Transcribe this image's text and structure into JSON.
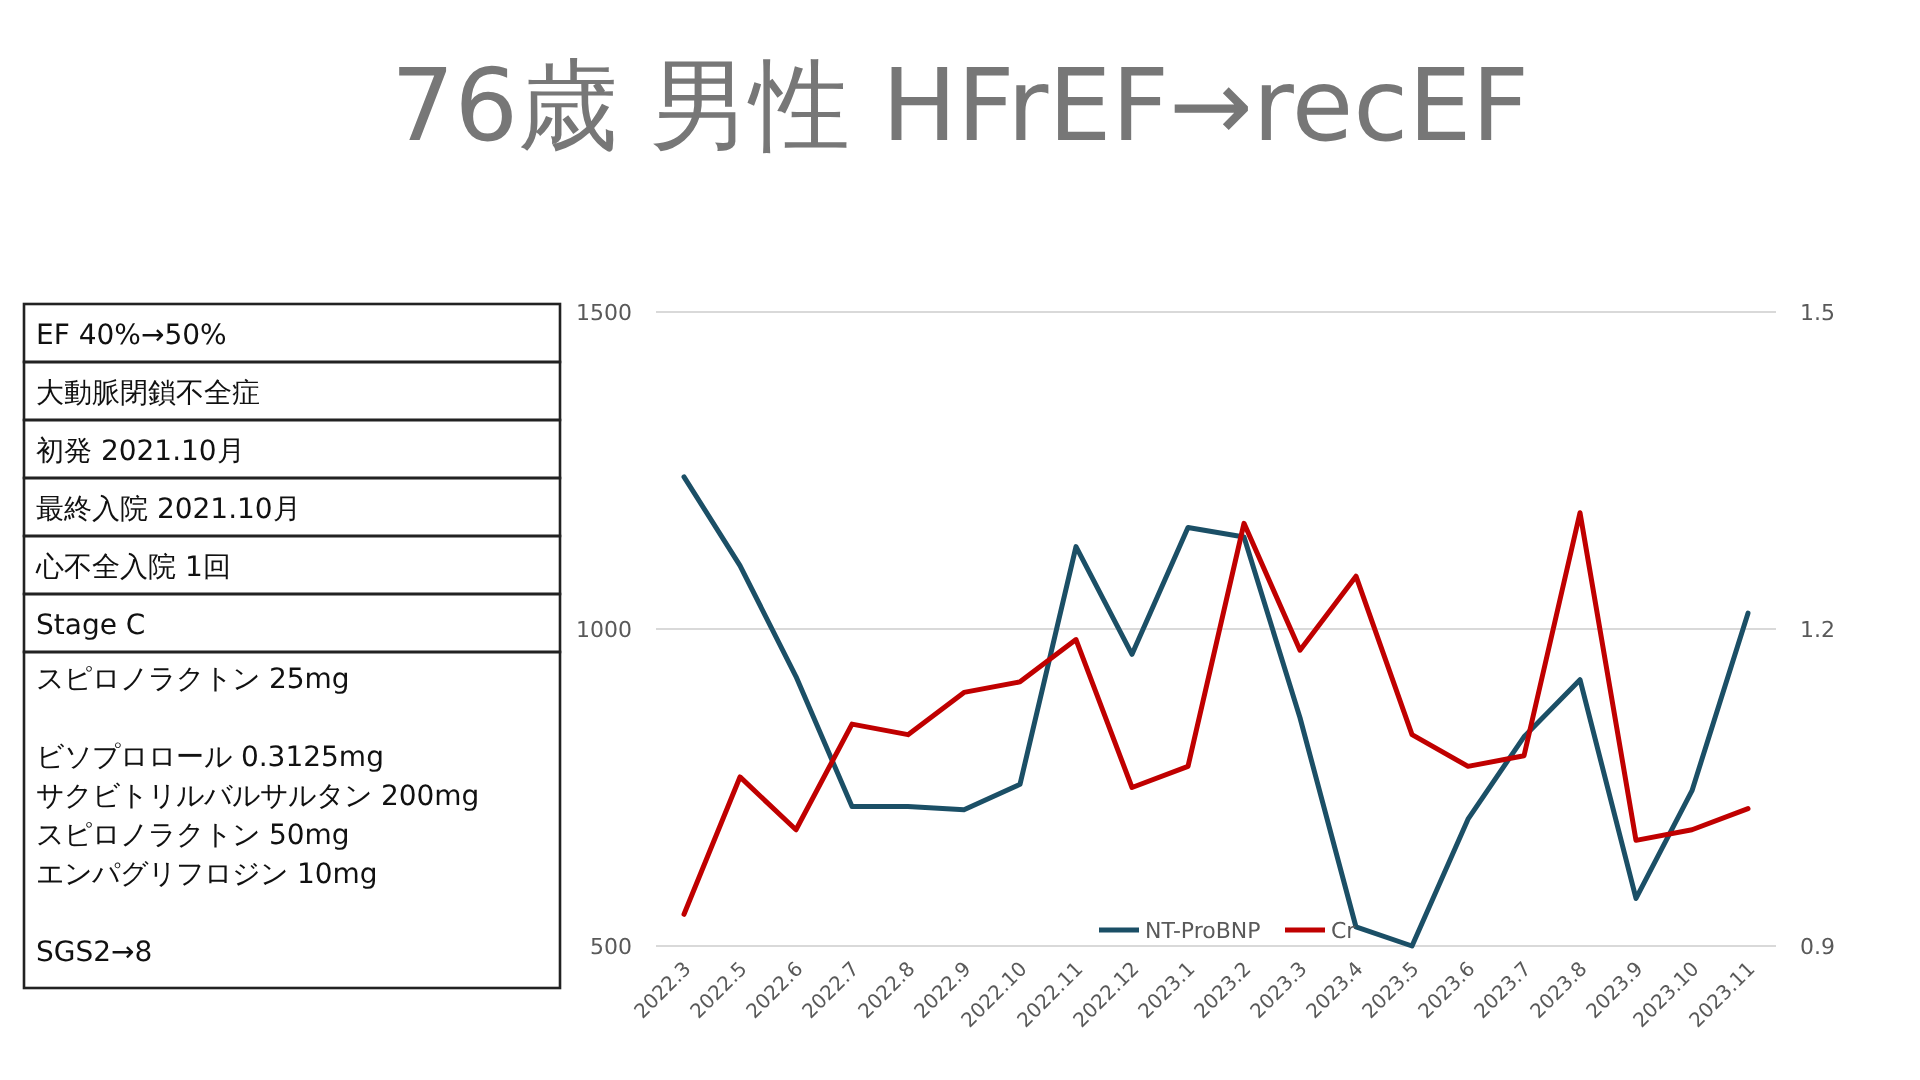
{
  "chart_data": [
    {
      "type": "other",
      "annotations": [
        "EF 40%→50%",
        "大動脈閉鎖不全症",
        "初発 2021.10月",
        "最終入院 2021.10月",
        "心不全入院 1回",
        "Stage C",
        "スピロノラクトン 25mg\n\nビソプロロール 0.3125mg\nサクビトリルバルサルタン 200mg\nスピロノラクトン 50mg\nエンパグリフロジン 10mg\n\nSGS2→8"
      ]
    },
    {
      "type": "line",
      "title": "76歳 男性 HFrEF→recEF",
      "categories": [
        "2022.3",
        "2022.5",
        "2022.6",
        "2022.7",
        "2022.8",
        "2022.9",
        "2022.10",
        "2022.11",
        "2022.12",
        "2023.1",
        "2023.2",
        "2023.3",
        "2023.4",
        "2023.5",
        "2023.6",
        "2023.7",
        "2023.8",
        "2023.9",
        "2023.10",
        "2023.11"
      ],
      "series": [
        {
          "name": "NT-ProBNP",
          "color": "#1b4f66",
          "values": [
            1240,
            1100,
            925,
            720,
            720,
            715,
            755,
            1130,
            960,
            1160,
            1145,
            860,
            530,
            500,
            700,
            830,
            920,
            575,
            745,
            1025
          ]
        },
        {
          "name": "Cr",
          "color": "#c00000",
          "axis": "y2",
          "values": [
            0.93,
            1.06,
            1.01,
            1.11,
            1.1,
            1.14,
            1.15,
            1.19,
            1.05,
            1.07,
            1.3,
            1.18,
            1.25,
            1.1,
            1.07,
            1.08,
            1.31,
            1.0,
            1.01,
            1.03
          ]
        }
      ],
      "ylim": [
        500,
        1500
      ],
      "yticks": [
        500,
        1000,
        1500
      ],
      "y2lim": [
        0.9,
        1.5
      ],
      "y2ticks": [
        0.9,
        1.2,
        1.5
      ],
      "grid": "y",
      "legend": "bottom",
      "line_style": "solid",
      "marker": "none"
    }
  ]
}
